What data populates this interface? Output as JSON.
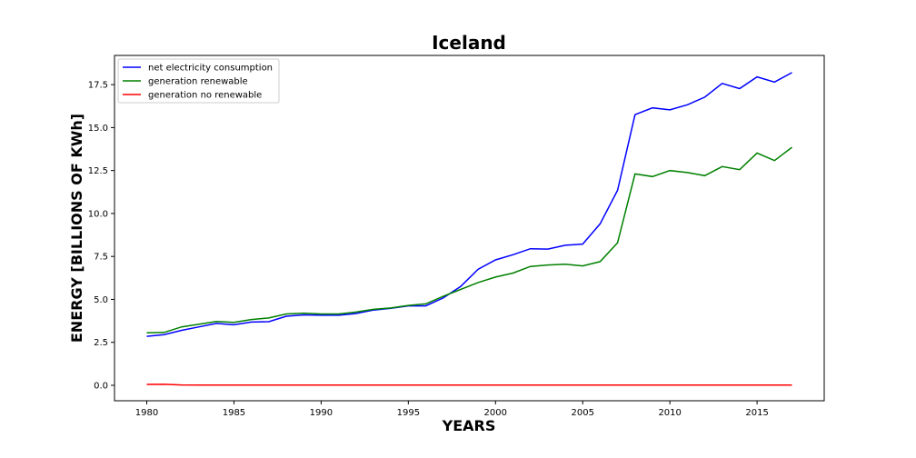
{
  "chart_data": {
    "type": "line",
    "title": "Iceland",
    "xlabel": "YEARS",
    "ylabel": "ENERGY [BILLIONS OF KWh]",
    "xlim": [
      1978.15,
      2018.85
    ],
    "ylim": [
      -0.9,
      19.2
    ],
    "xticks": [
      1980,
      1985,
      1990,
      1995,
      2000,
      2005,
      2010,
      2015
    ],
    "xtick_labels": [
      "1980",
      "1985",
      "1990",
      "1995",
      "2000",
      "2005",
      "2010",
      "2015"
    ],
    "yticks": [
      0.0,
      2.5,
      5.0,
      7.5,
      10.0,
      12.5,
      15.0,
      17.5
    ],
    "ytick_labels": [
      "0.0",
      "2.5",
      "5.0",
      "7.5",
      "10.0",
      "12.5",
      "15.0",
      "17.5"
    ],
    "grid": false,
    "legend_position": "top-left",
    "x": [
      1980,
      1981,
      1982,
      1983,
      1984,
      1985,
      1986,
      1987,
      1988,
      1989,
      1990,
      1991,
      1992,
      1993,
      1994,
      1995,
      1996,
      1997,
      1998,
      1999,
      2000,
      2001,
      2002,
      2003,
      2004,
      2005,
      2006,
      2007,
      2008,
      2009,
      2010,
      2011,
      2012,
      2013,
      2014,
      2015,
      2016,
      2017
    ],
    "series": [
      {
        "name": "net electricity consumption",
        "color": "#0000ff",
        "values": [
          2.85,
          2.95,
          3.2,
          3.4,
          3.6,
          3.52,
          3.68,
          3.7,
          4.02,
          4.1,
          4.08,
          4.08,
          4.18,
          4.38,
          4.48,
          4.62,
          4.62,
          5.08,
          5.75,
          6.75,
          7.3,
          7.6,
          7.95,
          7.93,
          8.15,
          8.22,
          9.4,
          11.35,
          15.75,
          16.15,
          16.03,
          16.33,
          16.77,
          17.57,
          17.27,
          17.95,
          17.65,
          18.2
        ]
      },
      {
        "name": "generation renewable",
        "color": "#008000",
        "values": [
          3.05,
          3.08,
          3.4,
          3.56,
          3.72,
          3.66,
          3.83,
          3.92,
          4.15,
          4.2,
          4.15,
          4.15,
          4.26,
          4.42,
          4.5,
          4.65,
          4.74,
          5.18,
          5.58,
          5.98,
          6.3,
          6.53,
          6.92,
          7.0,
          7.05,
          6.95,
          7.2,
          8.3,
          12.3,
          12.15,
          12.5,
          12.38,
          12.2,
          12.73,
          12.55,
          13.52,
          13.08,
          13.85
        ]
      },
      {
        "name": "generation no renewable",
        "color": "#ff0000",
        "values": [
          0.05,
          0.06,
          0.02,
          0.01,
          0.01,
          0.01,
          0.01,
          0.01,
          0.01,
          0.01,
          0.01,
          0.01,
          0.01,
          0.01,
          0.01,
          0.01,
          0.01,
          0.01,
          0.01,
          0.01,
          0.01,
          0.01,
          0.01,
          0.01,
          0.01,
          0.01,
          0.01,
          0.01,
          0.01,
          0.01,
          0.01,
          0.01,
          0.01,
          0.01,
          0.01,
          0.01,
          0.01,
          0.01
        ]
      }
    ]
  }
}
